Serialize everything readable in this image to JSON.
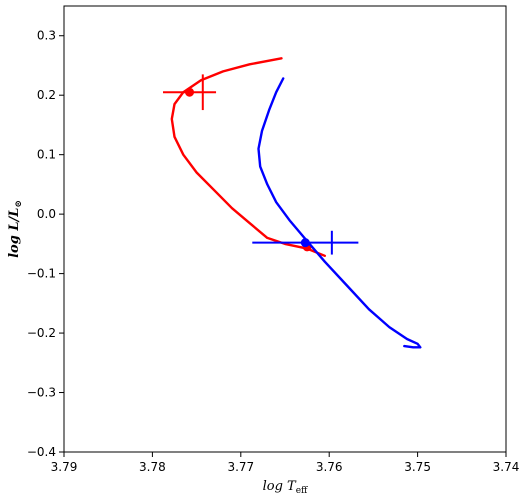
{
  "chart_data": {
    "type": "line",
    "xlabel": "log T_eff",
    "xlabel_main": "log T",
    "xlabel_sub": "eff",
    "ylabel": "log L/L_⊙",
    "ylabel_main": "log L/L",
    "ylabel_sub": "⊙",
    "xlim": [
      3.79,
      3.74
    ],
    "ylim": [
      -0.4,
      0.35
    ],
    "x_ticks": [
      3.79,
      3.78,
      3.77,
      3.76,
      3.75,
      3.74
    ],
    "x_tick_labels": [
      "3.79",
      "3.78",
      "3.77",
      "3.76",
      "3.75",
      "3.74"
    ],
    "y_ticks": [
      -0.4,
      -0.3,
      -0.2,
      -0.1,
      0.0,
      0.1,
      0.2,
      0.3
    ],
    "y_tick_labels": [
      "−0.4",
      "−0.3",
      "−0.2",
      "−0.1",
      "0.0",
      "0.1",
      "0.2",
      "0.3"
    ],
    "grid": false,
    "series": [
      {
        "color": "#ff0000",
        "track": [
          [
            3.7654,
            0.262
          ],
          [
            3.769,
            0.252
          ],
          [
            3.772,
            0.24
          ],
          [
            3.7745,
            0.225
          ],
          [
            3.7765,
            0.205
          ],
          [
            3.7775,
            0.185
          ],
          [
            3.7778,
            0.16
          ],
          [
            3.7775,
            0.13
          ],
          [
            3.7765,
            0.1
          ],
          [
            3.775,
            0.07
          ],
          [
            3.773,
            0.04
          ],
          [
            3.771,
            0.01
          ],
          [
            3.769,
            -0.015
          ],
          [
            3.767,
            -0.04
          ],
          [
            3.765,
            -0.05
          ],
          [
            3.7625,
            -0.058
          ],
          [
            3.7605,
            -0.07
          ]
        ],
        "points": [
          {
            "x": 3.7758,
            "y": 0.205,
            "xerr": 0.003,
            "yerr": 0.03
          },
          {
            "x": 3.7625,
            "y": -0.055
          }
        ]
      },
      {
        "color": "#0000ff",
        "track": [
          [
            3.7652,
            0.228
          ],
          [
            3.766,
            0.205
          ],
          [
            3.7668,
            0.175
          ],
          [
            3.7676,
            0.14
          ],
          [
            3.768,
            0.11
          ],
          [
            3.7678,
            0.08
          ],
          [
            3.767,
            0.05
          ],
          [
            3.766,
            0.02
          ],
          [
            3.7645,
            -0.01
          ],
          [
            3.7628,
            -0.04
          ],
          [
            3.7605,
            -0.08
          ],
          [
            3.758,
            -0.12
          ],
          [
            3.7555,
            -0.16
          ],
          [
            3.7532,
            -0.19
          ],
          [
            3.7512,
            -0.21
          ],
          [
            3.75,
            -0.218
          ],
          [
            3.7497,
            -0.224
          ],
          [
            3.7505,
            -0.224
          ],
          [
            3.7515,
            -0.222
          ]
        ],
        "points": [
          {
            "x": 3.7627,
            "y": -0.048,
            "xerr": 0.006,
            "yerr": 0.02
          }
        ]
      }
    ]
  }
}
